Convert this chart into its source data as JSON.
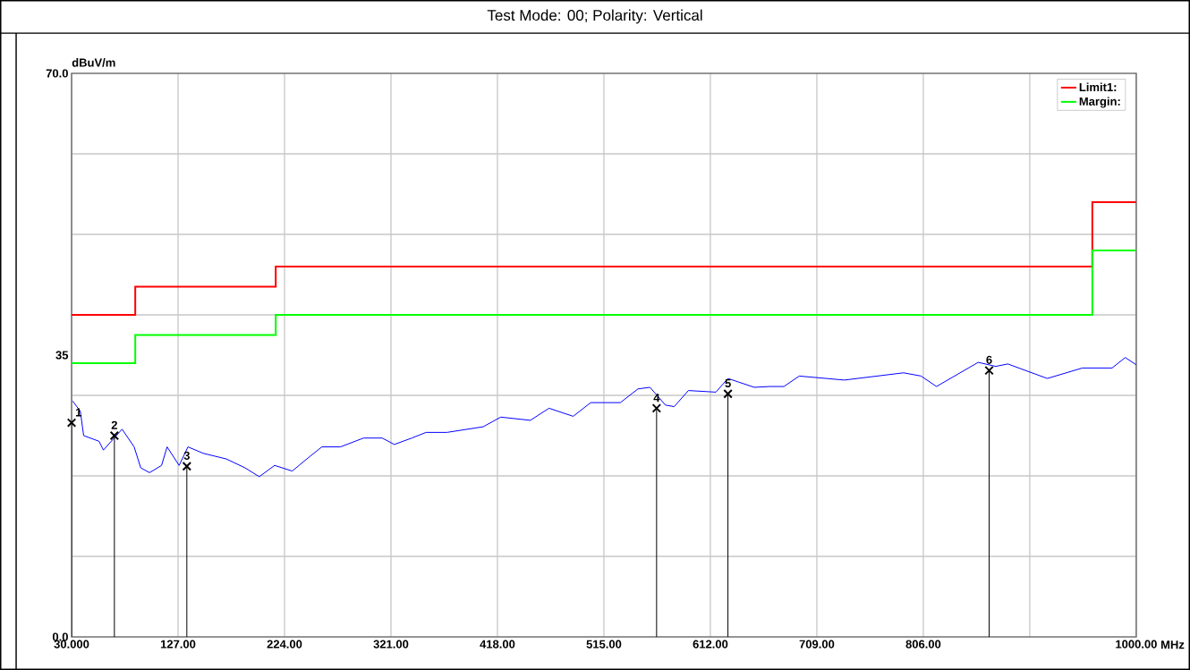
{
  "chart_data": {
    "type": "line",
    "title": "Test Mode: 00; Polarity: Vertical",
    "xlabel": "MHz",
    "ylabel": "dBuV/m",
    "xlim": [
      30,
      1000
    ],
    "ylim": [
      0,
      70
    ],
    "xticks": [
      {
        "value": 30,
        "label": "30.000"
      },
      {
        "value": 127,
        "label": "127.00"
      },
      {
        "value": 224,
        "label": "224.00"
      },
      {
        "value": 321,
        "label": "321.00"
      },
      {
        "value": 418,
        "label": "418.00"
      },
      {
        "value": 515,
        "label": "515.00"
      },
      {
        "value": 612,
        "label": "612.00"
      },
      {
        "value": 709,
        "label": "709.00"
      },
      {
        "value": 806,
        "label": "806.00"
      },
      {
        "value": 903,
        "label": null
      },
      {
        "value": 1000,
        "label": "1000.00"
      }
    ],
    "yticks": [
      {
        "value": 0,
        "label": "0.0"
      },
      {
        "value": 10,
        "label": null
      },
      {
        "value": 20,
        "label": null
      },
      {
        "value": 30,
        "label": null
      },
      35,
      {
        "value": 40,
        "label": null
      },
      {
        "value": 50,
        "label": null
      },
      {
        "value": 60,
        "label": null
      },
      {
        "value": 70,
        "label": "70.0"
      }
    ],
    "grid": true,
    "legend": "top right",
    "series": [
      {
        "color": "#0000ff",
        "x": [
          31,
          38,
          41,
          55,
          59,
          76,
          87,
          93,
          101,
          112,
          117,
          128,
          136,
          150,
          171,
          188,
          201,
          215,
          231,
          247,
          258,
          275,
          296,
          313,
          324,
          340,
          353,
          372,
          405,
          421,
          448,
          465,
          487,
          503,
          530,
          546,
          557,
          571,
          579,
          592,
          617,
          628,
          652,
          666,
          679,
          693,
          734,
          788,
          804,
          818,
          856,
          872,
          883,
          919,
          951,
          978,
          990,
          1000
        ],
        "values": [
          29.3,
          28.0,
          25.0,
          24.3,
          23.2,
          25.8,
          23.6,
          21.0,
          20.4,
          21.3,
          23.6,
          21.3,
          23.6,
          22.8,
          22.1,
          21.0,
          19.9,
          21.3,
          20.6,
          22.4,
          23.6,
          23.6,
          24.7,
          24.7,
          23.9,
          24.7,
          25.4,
          25.4,
          26.1,
          27.3,
          26.9,
          28.4,
          27.4,
          29.1,
          29.1,
          30.8,
          31.0,
          28.8,
          28.6,
          30.6,
          30.4,
          32.1,
          31.0,
          31.1,
          31.1,
          32.4,
          31.9,
          32.8,
          32.4,
          31.1,
          34.1,
          33.6,
          33.9,
          32.1,
          33.4,
          33.4,
          34.7,
          33.8
        ]
      },
      {
        "type": "step",
        "name": "Limit1:",
        "color": "#ff0000",
        "x": [
          30,
          88,
          216,
          960,
          1000
        ],
        "values": [
          40,
          43.5,
          46,
          54,
          54
        ]
      },
      {
        "type": "step",
        "name": "Margin:",
        "color": "#00ff00",
        "x": [
          30,
          88,
          216,
          960,
          1000
        ],
        "values": [
          34,
          37.5,
          40,
          48,
          48
        ]
      },
      {
        "type": "lollipop",
        "color": "#000000",
        "marker": "cross",
        "x": [
          30,
          69,
          135,
          563,
          628,
          866
        ],
        "values": [
          26.6,
          25.0,
          21.2,
          28.4,
          30.2,
          33.1
        ]
      }
    ],
    "annotations": [
      {
        "text": "1",
        "x": 30,
        "y": 26.6
      },
      {
        "text": "2",
        "x": 69,
        "y": 25.0
      },
      {
        "text": "3",
        "x": 135,
        "y": 21.2
      },
      {
        "text": "4",
        "x": 563,
        "y": 28.4
      },
      {
        "text": "5",
        "x": 628,
        "y": 30.2
      },
      {
        "text": "6",
        "x": 866,
        "y": 33.1
      }
    ]
  }
}
